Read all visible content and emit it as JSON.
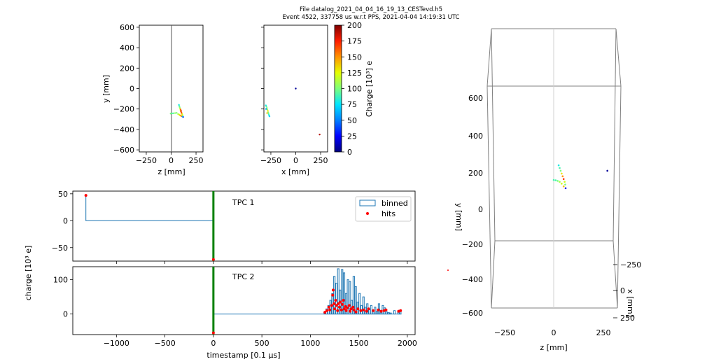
{
  "header": {
    "line1": "File datalog_2021_04_04_16_19_13_CESTevd.h5",
    "line2": "Event 4522, 337758 us w.r.t PPS, 2021-04-04 14:19:31 UTC"
  },
  "colors": {
    "binned": "#1f77b4",
    "hits": "#ff0000",
    "trigger": "#008000",
    "cmap": [
      "#00007f",
      "#0000ff",
      "#007fff",
      "#00e5ff",
      "#7dff7a",
      "#e5ff00",
      "#ff9300",
      "#ff1c00",
      "#7f0000"
    ]
  },
  "chart_data": [
    {
      "type": "scatter",
      "xlabel": "z [mm]",
      "ylabel": "y [mm]",
      "xlim": [
        -320,
        320
      ],
      "ylim": [
        -620,
        620
      ],
      "xticks": [
        "−250",
        "0",
        "250"
      ],
      "yticks": [
        "−600",
        "−400",
        "−200",
        "0",
        "200",
        "400",
        "600"
      ],
      "points": [
        {
          "x": -5,
          "y": -245,
          "c": 100
        },
        {
          "x": 10,
          "y": -243,
          "c": 90
        },
        {
          "x": 25,
          "y": -242,
          "c": 95
        },
        {
          "x": 40,
          "y": -240,
          "c": 105
        },
        {
          "x": 55,
          "y": -238,
          "c": 100
        },
        {
          "x": 70,
          "y": -250,
          "c": 110
        },
        {
          "x": 80,
          "y": -255,
          "c": 120
        },
        {
          "x": 90,
          "y": -262,
          "c": 140
        },
        {
          "x": 100,
          "y": -268,
          "c": 150
        },
        {
          "x": 110,
          "y": -272,
          "c": 160
        },
        {
          "x": 120,
          "y": -278,
          "c": 20
        },
        {
          "x": 115,
          "y": -275,
          "c": 60
        },
        {
          "x": 78,
          "y": -160,
          "c": 80
        },
        {
          "x": 82,
          "y": -172,
          "c": 90
        },
        {
          "x": 86,
          "y": -185,
          "c": 100
        },
        {
          "x": 90,
          "y": -198,
          "c": 120
        },
        {
          "x": 94,
          "y": -212,
          "c": 130
        },
        {
          "x": 98,
          "y": -225,
          "c": 140
        },
        {
          "x": 104,
          "y": -238,
          "c": 170
        },
        {
          "x": 110,
          "y": -250,
          "c": 130
        },
        {
          "x": 116,
          "y": -262,
          "c": 110
        },
        {
          "x": 95,
          "y": -205,
          "c": 160
        },
        {
          "x": 100,
          "y": -220,
          "c": 180
        }
      ]
    },
    {
      "type": "scatter",
      "xlabel": "x [mm]",
      "xlim": [
        -320,
        320
      ],
      "ylim": [
        -620,
        620
      ],
      "xticks": [
        "−250",
        "0",
        "250"
      ],
      "colorbar": {
        "label": "Charge [10³] e",
        "range": [
          0,
          200
        ],
        "ticks": [
          "0",
          "25",
          "50",
          "75",
          "100",
          "125",
          "150",
          "175",
          "200"
        ]
      },
      "points": [
        {
          "x": -300,
          "y": -165,
          "c": 80
        },
        {
          "x": -295,
          "y": -175,
          "c": 90
        },
        {
          "x": -290,
          "y": -190,
          "c": 100
        },
        {
          "x": -285,
          "y": -205,
          "c": 110
        },
        {
          "x": -280,
          "y": -220,
          "c": 130
        },
        {
          "x": -276,
          "y": -235,
          "c": 100
        },
        {
          "x": -272,
          "y": -250,
          "c": 90
        },
        {
          "x": -268,
          "y": -262,
          "c": 80
        },
        {
          "x": -264,
          "y": -272,
          "c": 70
        },
        {
          "x": -298,
          "y": -200,
          "c": 60
        },
        {
          "x": -288,
          "y": -240,
          "c": 140
        },
        {
          "x": 0,
          "y": 0,
          "c": 5
        },
        {
          "x": 240,
          "y": -450,
          "c": 190
        }
      ]
    },
    {
      "type": "bar",
      "title": "TPC 1",
      "xlim": [
        -1450,
        2080
      ],
      "ylim": [
        -75,
        55
      ],
      "yticks": [
        "50",
        "0",
        "−50"
      ],
      "xticks": [
        "−1000",
        "−500",
        "0",
        "500",
        "1000",
        "1500",
        "2000"
      ],
      "legend": [
        "binned",
        "hits"
      ],
      "legend_position": "upper right",
      "trigger_x": 0,
      "binned_step": [
        [
          -1315,
          47
        ],
        [
          -1300,
          0
        ],
        [
          0,
          0
        ]
      ],
      "hits": [
        {
          "x": -1315,
          "y": 47
        },
        {
          "x": 0,
          "y": -72
        }
      ]
    },
    {
      "type": "bar",
      "title": "TPC 2",
      "xlabel": "timestamp [0.1 μs]",
      "ylabel": "charge [10³ e]",
      "xlim": [
        -1450,
        2080
      ],
      "ylim": [
        -60,
        138
      ],
      "yticks": [
        "100",
        "0"
      ],
      "xticks": [
        "−1000",
        "−500",
        "0",
        "500",
        "1000",
        "1500",
        "2000"
      ],
      "trigger_x": 0,
      "binned": [
        {
          "x": 1140,
          "v": 5
        },
        {
          "x": 1160,
          "v": 15
        },
        {
          "x": 1180,
          "v": 25
        },
        {
          "x": 1200,
          "v": 40
        },
        {
          "x": 1220,
          "v": 60
        },
        {
          "x": 1240,
          "v": 110
        },
        {
          "x": 1260,
          "v": 90
        },
        {
          "x": 1280,
          "v": 132
        },
        {
          "x": 1300,
          "v": 70
        },
        {
          "x": 1320,
          "v": 130
        },
        {
          "x": 1340,
          "v": 120
        },
        {
          "x": 1360,
          "v": 60
        },
        {
          "x": 1380,
          "v": 100
        },
        {
          "x": 1400,
          "v": 95
        },
        {
          "x": 1420,
          "v": 40
        },
        {
          "x": 1440,
          "v": 110
        },
        {
          "x": 1460,
          "v": 80
        },
        {
          "x": 1480,
          "v": 35
        },
        {
          "x": 1500,
          "v": 60
        },
        {
          "x": 1520,
          "v": 25
        },
        {
          "x": 1540,
          "v": 50
        },
        {
          "x": 1560,
          "v": 20
        },
        {
          "x": 1580,
          "v": 30
        },
        {
          "x": 1600,
          "v": 15
        },
        {
          "x": 1620,
          "v": 25
        },
        {
          "x": 1640,
          "v": 10
        },
        {
          "x": 1660,
          "v": 20
        },
        {
          "x": 1680,
          "v": 8
        },
        {
          "x": 1700,
          "v": 30
        },
        {
          "x": 1720,
          "v": 5
        },
        {
          "x": 1740,
          "v": 25
        },
        {
          "x": 1760,
          "v": 18
        },
        {
          "x": 1780,
          "v": 6
        },
        {
          "x": 1800,
          "v": 4
        },
        {
          "x": 1820,
          "v": 3
        },
        {
          "x": 1860,
          "v": 10
        },
        {
          "x": 1900,
          "v": 5
        },
        {
          "x": 1920,
          "v": 8
        }
      ],
      "hits": [
        {
          "x": 1150,
          "y": 5
        },
        {
          "x": 1170,
          "y": 10
        },
        {
          "x": 1190,
          "y": 20
        },
        {
          "x": 1200,
          "y": 12
        },
        {
          "x": 1220,
          "y": 25
        },
        {
          "x": 1230,
          "y": 55
        },
        {
          "x": 1235,
          "y": 70
        },
        {
          "x": 1245,
          "y": 30
        },
        {
          "x": 1250,
          "y": 15
        },
        {
          "x": 1260,
          "y": 40
        },
        {
          "x": 1270,
          "y": 25
        },
        {
          "x": 1280,
          "y": 10
        },
        {
          "x": 1290,
          "y": 30
        },
        {
          "x": 1300,
          "y": 20
        },
        {
          "x": 1310,
          "y": 35
        },
        {
          "x": 1320,
          "y": 12
        },
        {
          "x": 1330,
          "y": 28
        },
        {
          "x": 1340,
          "y": 40
        },
        {
          "x": 1350,
          "y": 15
        },
        {
          "x": 1360,
          "y": 22
        },
        {
          "x": 1370,
          "y": 10
        },
        {
          "x": 1380,
          "y": 18
        },
        {
          "x": 1400,
          "y": 25
        },
        {
          "x": 1410,
          "y": 8
        },
        {
          "x": 1420,
          "y": 15
        },
        {
          "x": 1440,
          "y": 20
        },
        {
          "x": 1450,
          "y": 12
        },
        {
          "x": 1470,
          "y": 6
        },
        {
          "x": 1490,
          "y": 15
        },
        {
          "x": 1520,
          "y": 10
        },
        {
          "x": 1550,
          "y": 12
        },
        {
          "x": 1580,
          "y": 8
        },
        {
          "x": 1600,
          "y": 15
        },
        {
          "x": 1650,
          "y": 10
        },
        {
          "x": 1700,
          "y": 12
        },
        {
          "x": 1730,
          "y": 8
        },
        {
          "x": 1760,
          "y": 10
        },
        {
          "x": 1780,
          "y": 12
        },
        {
          "x": 1910,
          "y": 8
        },
        {
          "x": 1930,
          "y": 10
        },
        {
          "x": 0,
          "y": -55
        }
      ]
    },
    {
      "type": "scatter",
      "xlabel": "z [mm]",
      "ylabel": "y [mm]",
      "zlabel": "x [mm]",
      "view": "3d",
      "xticks": [
        "−250",
        "0",
        "250"
      ],
      "yticks": [
        "600",
        "400",
        "200",
        "0",
        "−200",
        "−400",
        "−600"
      ],
      "zticks": [
        "−250",
        "0",
        "250"
      ],
      "points": [
        {
          "x": 0,
          "y": 160,
          "c": 90
        },
        {
          "x": 10,
          "y": 158,
          "c": 90
        },
        {
          "x": 20,
          "y": 155,
          "c": 100
        },
        {
          "x": 30,
          "y": 150,
          "c": 110
        },
        {
          "x": 40,
          "y": 140,
          "c": 120
        },
        {
          "x": 50,
          "y": 125,
          "c": 140
        },
        {
          "x": 60,
          "y": 115,
          "c": 20
        },
        {
          "x": 25,
          "y": 240,
          "c": 80
        },
        {
          "x": 30,
          "y": 225,
          "c": 90
        },
        {
          "x": 35,
          "y": 210,
          "c": 100
        },
        {
          "x": 40,
          "y": 195,
          "c": 130
        },
        {
          "x": 45,
          "y": 180,
          "c": 150
        },
        {
          "x": 50,
          "y": 165,
          "c": 170
        },
        {
          "x": 55,
          "y": 150,
          "c": 120
        },
        {
          "x": 58,
          "y": 135,
          "c": 100
        },
        {
          "x": 270,
          "y": 210,
          "c": 5
        }
      ]
    }
  ]
}
